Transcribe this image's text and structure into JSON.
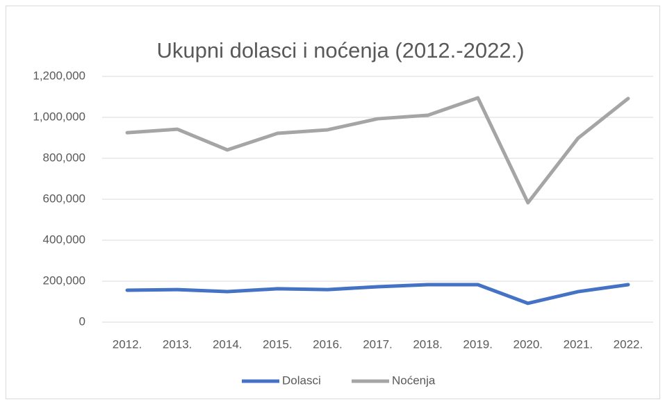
{
  "chart_data": {
    "type": "line",
    "title": "Ukupni dolasci i noćenja (2012.-2022.)",
    "categories": [
      "2012.",
      "2013.",
      "2014.",
      "2015.",
      "2016.",
      "2017.",
      "2018.",
      "2019.",
      "2020.",
      "2021.",
      "2022."
    ],
    "series": [
      {
        "name": "Dolasci",
        "color": "#4472c4",
        "values": [
          156000,
          159000,
          149000,
          163000,
          159000,
          173000,
          183000,
          183000,
          92000,
          149000,
          183000
        ]
      },
      {
        "name": "Noćenja",
        "color": "#a5a5a5",
        "values": [
          925000,
          942000,
          841000,
          922000,
          939000,
          993000,
          1010000,
          1095000,
          583000,
          898000,
          1092000
        ]
      }
    ],
    "ylim": [
      0,
      1200000
    ],
    "yticks": [
      0,
      {
        "value": 200000,
        "label": "200,000"
      },
      {
        "value": 400000,
        "label": "400,000"
      },
      {
        "value": 600000,
        "label": "600,000"
      },
      {
        "value": 800000,
        "label": "800,000"
      },
      {
        "value": 1000000,
        "label": "1,000,000"
      },
      {
        "value": 1200000,
        "label": "1,200,000"
      }
    ],
    "grid": true,
    "legend": "bottom"
  }
}
